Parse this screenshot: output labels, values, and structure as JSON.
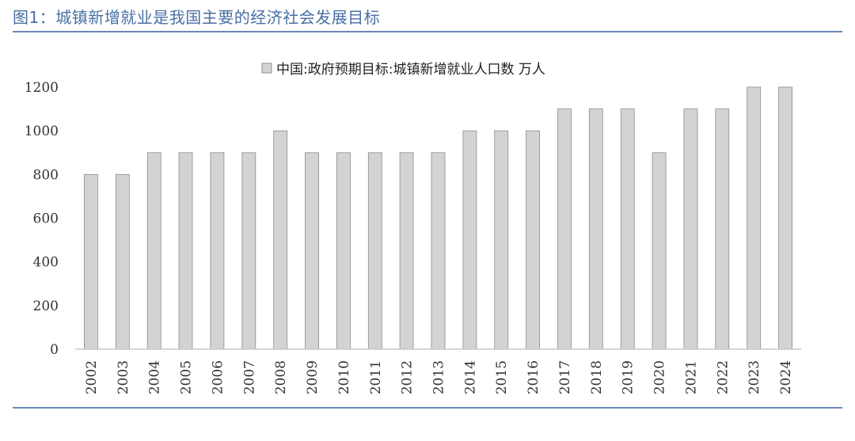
{
  "figure": {
    "title": "图1：城镇新增就业是我国主要的经济社会发展目标"
  },
  "colors": {
    "bar_fill": "#d3d3d3",
    "bar_stroke": "#8c8c8c",
    "axis": "#c8c8c8",
    "rule": "#6a88b8",
    "title": "#4a6fa5"
  },
  "chart_data": {
    "type": "bar",
    "title": "",
    "legend": [
      "中国:政府预期目标:城镇新增就业人口数 万人"
    ],
    "legend_position": "top-center",
    "categories": [
      "2002",
      "2003",
      "2004",
      "2005",
      "2006",
      "2007",
      "2008",
      "2009",
      "2010",
      "2011",
      "2012",
      "2013",
      "2014",
      "2015",
      "2016",
      "2017",
      "2018",
      "2019",
      "2020",
      "2021",
      "2022",
      "2023",
      "2024"
    ],
    "series": [
      {
        "name": "中国:政府预期目标:城镇新增就业人口数 万人",
        "values": [
          800,
          800,
          900,
          900,
          900,
          900,
          1000,
          900,
          900,
          900,
          900,
          900,
          1000,
          1000,
          1000,
          1100,
          1100,
          1100,
          900,
          1100,
          1100,
          1200,
          1200
        ]
      }
    ],
    "yticks": [
      0,
      200,
      400,
      600,
      800,
      1000,
      1200
    ],
    "ylim": [
      0,
      1200
    ],
    "grid": false,
    "xlabel": "",
    "ylabel": ""
  }
}
